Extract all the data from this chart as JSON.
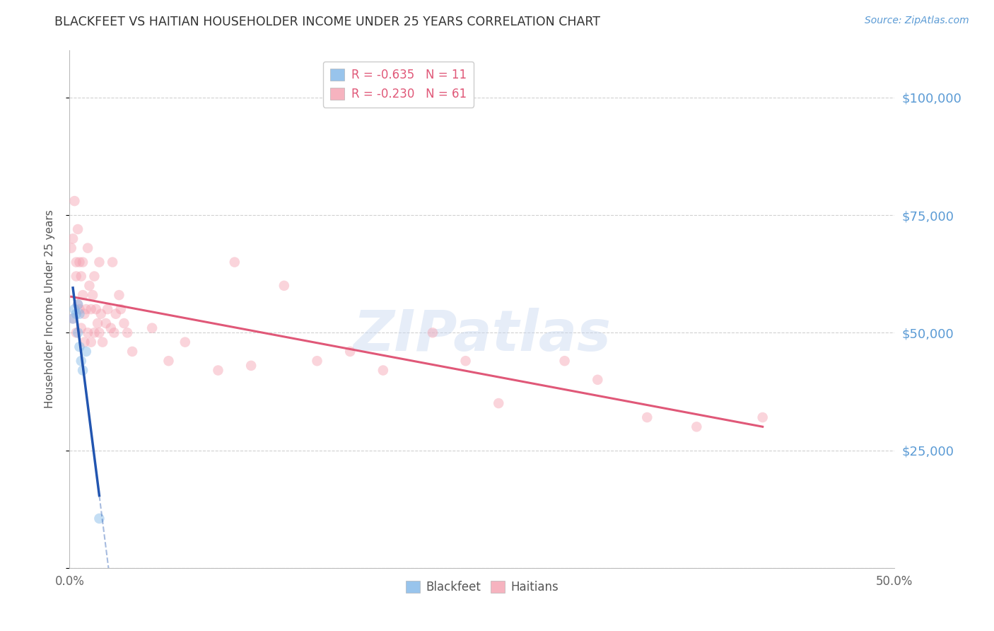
{
  "title": "BLACKFEET VS HAITIAN HOUSEHOLDER INCOME UNDER 25 YEARS CORRELATION CHART",
  "source": "Source: ZipAtlas.com",
  "ylabel": "Householder Income Under 25 years",
  "xlim": [
    0.0,
    0.5
  ],
  "ylim": [
    0,
    110000
  ],
  "yticks": [
    0,
    25000,
    50000,
    75000,
    100000
  ],
  "ytick_labels": [
    "",
    "$25,000",
    "$50,000",
    "$75,000",
    "$100,000"
  ],
  "xticks": [
    0.0,
    0.05,
    0.1,
    0.15,
    0.2,
    0.25,
    0.3,
    0.35,
    0.4,
    0.45,
    0.5
  ],
  "xtick_labels": [
    "0.0%",
    "",
    "",
    "",
    "",
    "",
    "",
    "",
    "",
    "",
    "50.0%"
  ],
  "watermark": "ZIPatlas",
  "legend_r_blackfeet": "R = -0.635",
  "legend_n_blackfeet": "N = 11",
  "legend_r_haitian": "R = -0.230",
  "legend_n_haitian": "N = 61",
  "blackfeet_color": "#7EB6E8",
  "haitian_color": "#F4A0B0",
  "blackfeet_line_color": "#2255B0",
  "haitian_line_color": "#E05878",
  "grid_color": "#CCCCCC",
  "axis_color": "#BBBBBB",
  "title_color": "#333333",
  "right_label_color": "#5B9BD5",
  "blackfeet_x": [
    0.002,
    0.003,
    0.004,
    0.005,
    0.005,
    0.006,
    0.006,
    0.007,
    0.008,
    0.01,
    0.018
  ],
  "blackfeet_y": [
    53000,
    55000,
    54000,
    56000,
    50000,
    54000,
    47000,
    44000,
    42000,
    46000,
    10500
  ],
  "haitian_x": [
    0.001,
    0.002,
    0.002,
    0.003,
    0.004,
    0.004,
    0.004,
    0.005,
    0.005,
    0.006,
    0.006,
    0.007,
    0.007,
    0.008,
    0.008,
    0.009,
    0.009,
    0.01,
    0.011,
    0.011,
    0.012,
    0.013,
    0.013,
    0.014,
    0.015,
    0.015,
    0.016,
    0.017,
    0.018,
    0.018,
    0.019,
    0.02,
    0.022,
    0.023,
    0.025,
    0.026,
    0.027,
    0.028,
    0.03,
    0.031,
    0.033,
    0.035,
    0.038,
    0.05,
    0.06,
    0.07,
    0.09,
    0.1,
    0.11,
    0.13,
    0.15,
    0.17,
    0.19,
    0.22,
    0.24,
    0.26,
    0.3,
    0.32,
    0.35,
    0.38,
    0.42
  ],
  "haitian_y": [
    68000,
    70000,
    53000,
    78000,
    65000,
    62000,
    50000,
    56000,
    72000,
    65000,
    55000,
    62000,
    51000,
    65000,
    58000,
    54000,
    48000,
    55000,
    68000,
    50000,
    60000,
    55000,
    48000,
    58000,
    62000,
    50000,
    55000,
    52000,
    50000,
    65000,
    54000,
    48000,
    52000,
    55000,
    51000,
    65000,
    50000,
    54000,
    58000,
    55000,
    52000,
    50000,
    46000,
    51000,
    44000,
    48000,
    42000,
    65000,
    43000,
    60000,
    44000,
    46000,
    42000,
    50000,
    44000,
    35000,
    44000,
    40000,
    32000,
    30000,
    32000
  ],
  "marker_size": 110,
  "marker_alpha": 0.45,
  "background_color": "#FFFFFF"
}
